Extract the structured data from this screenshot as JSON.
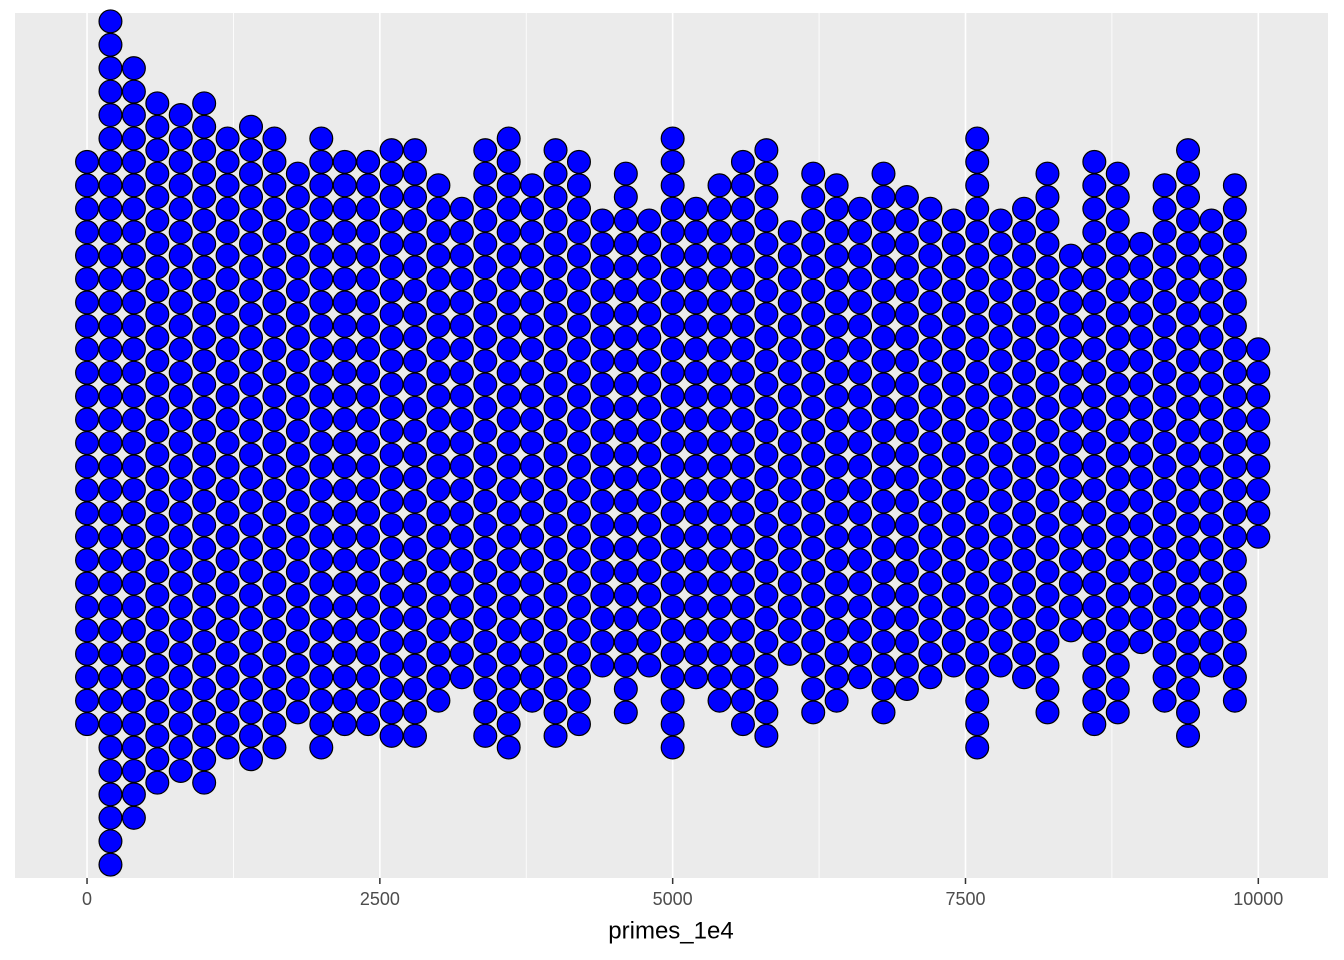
{
  "chart_data": {
    "type": "dotplot",
    "x_label": "primes_1e4",
    "x": [
      0,
      200,
      400,
      600,
      800,
      1000,
      1200,
      1400,
      1600,
      1800,
      2000,
      2200,
      2400,
      2600,
      2800,
      3000,
      3200,
      3400,
      3600,
      3800,
      4000,
      4200,
      4400,
      4600,
      4800,
      5000,
      5200,
      5400,
      5600,
      5800,
      6000,
      6200,
      6400,
      6600,
      6800,
      7000,
      7200,
      7400,
      7600,
      7800,
      8000,
      8200,
      8400,
      8600,
      8800,
      9000,
      9200,
      9400,
      9600,
      9800,
      10000
    ],
    "counts": [
      25,
      37,
      33,
      30,
      29,
      30,
      27,
      28,
      27,
      24,
      27,
      25,
      25,
      26,
      26,
      23,
      21,
      26,
      27,
      23,
      26,
      25,
      20,
      24,
      20,
      27,
      21,
      23,
      25,
      26,
      19,
      24,
      23,
      21,
      24,
      22,
      21,
      20,
      27,
      20,
      21,
      24,
      17,
      25,
      24,
      18,
      23,
      26,
      20,
      23,
      9
    ],
    "color": "#0000ff",
    "xlim": [
      -615,
      10595
    ],
    "xticks": [
      0,
      2500,
      5000,
      7500,
      10000
    ],
    "grid": true
  }
}
